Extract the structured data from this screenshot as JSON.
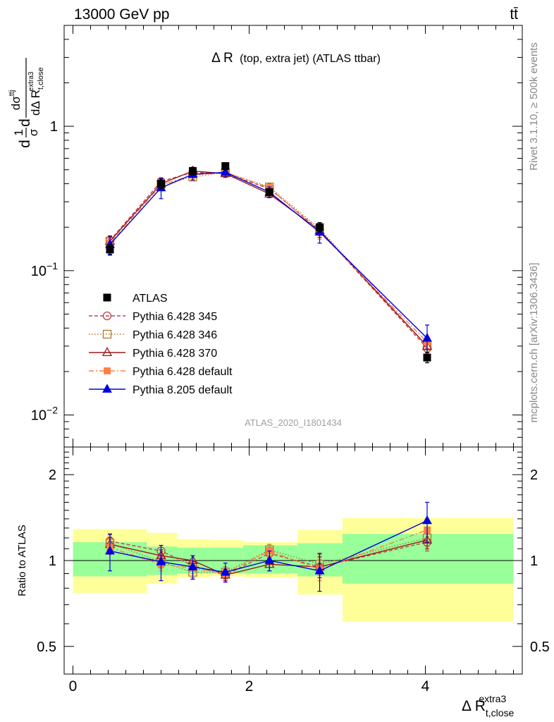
{
  "header": {
    "energy_label": "13000 GeV pp",
    "process_label": "tt̄",
    "rivet_label": "Rivet 3.1.10, ≥ 500k events",
    "mcplots_label": "mcplots.cern.ch [arXiv:1306.3436]"
  },
  "colors": {
    "ATLAS": "#000000",
    "Pythia 6.428 345": "#c04050",
    "Pythia 6.428 346": "#b07830",
    "Pythia 6.428 370": "#a01818",
    "Pythia 6.428 default": "#ff8040",
    "Pythia 8.205 default": "#0000e0",
    "band_inner": "#99ff99",
    "band_outer": "#ffff99"
  },
  "chart_data": [
    {
      "type": "line",
      "panel": "main",
      "title_main": "Δ R",
      "title_detail": "(top, extra jet) (ATLAS ttbar)",
      "ylabel": "dσ / dΔ R_t,close^extra3 (normalized, 1/σ)",
      "ylabel_parts": {
        "frac_top": "1",
        "frac_bottom": "σ",
        "d_prefix": "d",
        "d_sigma_top": "dσ",
        "d_sigma_sup": "ttj",
        "d_bottom": "dΔ R",
        "d_bottom_sub": "t,close",
        "d_bottom_sup": "extra3"
      },
      "yscale": "log",
      "ylim": [
        0.006,
        5
      ],
      "xlim": [
        -0.1,
        5.1
      ],
      "yticks_major": [
        {
          "value": 0.01,
          "base": "10",
          "exp": "−2"
        },
        {
          "value": 0.1,
          "base": "10",
          "exp": "−1"
        },
        {
          "value": 1,
          "base": "1",
          "exp": ""
        }
      ],
      "watermark": "ATLAS_2020_I1801434",
      "legend_position": "lower-left",
      "data": {
        "name": "ATLAS",
        "x": [
          0.42,
          1.0,
          1.36,
          1.73,
          2.23,
          2.8,
          4.02
        ],
        "y": [
          0.14,
          0.4,
          0.49,
          0.53,
          0.35,
          0.2,
          0.025
        ],
        "yerr": [
          0.012,
          0.03,
          0.03,
          0.03,
          0.02,
          0.015,
          0.002
        ]
      },
      "series": [
        {
          "name": "Pythia 6.428 345",
          "marker": "circle-open",
          "dash": "5,3",
          "y": [
            0.162,
            0.415,
            0.48,
            0.47,
            0.37,
            0.19,
            0.029
          ],
          "yerr": [
            0.012,
            0.02,
            0.025,
            0.025,
            0.02,
            0.02,
            0.003
          ]
        },
        {
          "name": "Pythia 6.428 346",
          "marker": "square-open",
          "dash": "1.5,2.5",
          "y": [
            0.16,
            0.395,
            0.445,
            0.48,
            0.38,
            0.195,
            0.03
          ],
          "yerr": [
            0.012,
            0.02,
            0.025,
            0.025,
            0.02,
            0.02,
            0.003
          ]
        },
        {
          "name": "Pythia 6.428 370",
          "marker": "triangle-open",
          "dash": "",
          "y": [
            0.16,
            0.4,
            0.49,
            0.47,
            0.34,
            0.19,
            0.03
          ],
          "yerr": [
            0.012,
            0.02,
            0.025,
            0.025,
            0.02,
            0.02,
            0.003
          ]
        },
        {
          "name": "Pythia 6.428 default",
          "marker": "square-filled",
          "dash": "7,3,2,3",
          "y": [
            0.155,
            0.39,
            0.46,
            0.48,
            0.375,
            0.185,
            0.032
          ],
          "yerr": [
            0.012,
            0.02,
            0.025,
            0.025,
            0.02,
            0.02,
            0.003
          ]
        },
        {
          "name": "Pythia 8.205 default",
          "marker": "triangle-filled",
          "dash": "",
          "y": [
            0.152,
            0.375,
            0.465,
            0.48,
            0.35,
            0.185,
            0.034
          ],
          "yerr": [
            0.022,
            0.06,
            0.04,
            0.035,
            0.03,
            0.03,
            0.008
          ]
        }
      ]
    },
    {
      "type": "line",
      "panel": "ratio",
      "ylabel": "Ratio to ATLAS",
      "yscale": "log",
      "ylim": [
        0.4,
        2.5
      ],
      "xlim": [
        -0.1,
        5.1
      ],
      "yticks_major": [
        {
          "value": 0.5,
          "label": "0.5"
        },
        {
          "value": 1,
          "label": "1"
        },
        {
          "value": 2,
          "label": "2"
        }
      ],
      "xticks_major": [
        {
          "value": 0,
          "label": "0"
        },
        {
          "value": 2,
          "label": "2"
        },
        {
          "value": 4,
          "label": "4"
        }
      ],
      "xlabel_parts": {
        "main": "Δ R",
        "sub": "t,close",
        "sup": "extra3"
      },
      "bands": {
        "edges": [
          0,
          0.84,
          1.18,
          1.55,
          1.93,
          2.55,
          3.06,
          5.0
        ],
        "inner_low": [
          0.88,
          0.89,
          0.9,
          0.9,
          0.9,
          0.88,
          0.83
        ],
        "inner_high": [
          1.16,
          1.12,
          1.11,
          1.11,
          1.13,
          1.15,
          1.24
        ],
        "outer_low": [
          0.77,
          0.83,
          0.87,
          0.88,
          0.87,
          0.76,
          0.61
        ],
        "outer_high": [
          1.29,
          1.25,
          1.19,
          1.18,
          1.16,
          1.28,
          1.41
        ]
      },
      "x": [
        0.42,
        1.0,
        1.36,
        1.73,
        2.23,
        2.8,
        4.02
      ],
      "series": [
        {
          "name": "Pythia 6.428 345",
          "marker": "circle-open",
          "dash": "5,3",
          "y": [
            1.17,
            1.08,
            0.96,
            0.89,
            1.06,
            0.95,
            1.16
          ],
          "yerr": [
            0.06,
            0.05,
            0.04,
            0.04,
            0.05,
            0.08,
            0.08
          ]
        },
        {
          "name": "Pythia 6.428 346",
          "marker": "square-open",
          "dash": "1.5,2.5",
          "y": [
            1.15,
            0.99,
            0.91,
            0.91,
            1.09,
            0.97,
            1.2
          ],
          "yerr": [
            0.06,
            0.05,
            0.04,
            0.04,
            0.05,
            0.08,
            0.08
          ]
        },
        {
          "name": "Pythia 6.428 370",
          "marker": "triangle-open",
          "dash": "",
          "y": [
            1.14,
            1.04,
            1.0,
            0.89,
            0.97,
            0.95,
            1.18
          ],
          "yerr": [
            0.06,
            0.05,
            0.04,
            0.04,
            0.05,
            0.08,
            0.08
          ]
        },
        {
          "name": "Pythia 6.428 default",
          "marker": "square-filled",
          "dash": "7,3,2,3",
          "y": [
            1.11,
            0.97,
            0.94,
            0.9,
            1.08,
            0.93,
            1.28
          ],
          "yerr": [
            0.06,
            0.05,
            0.04,
            0.04,
            0.05,
            0.08,
            0.08
          ]
        },
        {
          "name": "Pythia 8.205 default",
          "marker": "triangle-filled",
          "dash": "",
          "y": [
            1.08,
            0.99,
            0.95,
            0.91,
            1.0,
            0.92,
            1.38
          ],
          "yerr": [
            0.16,
            0.14,
            0.09,
            0.07,
            0.08,
            0.14,
            0.22
          ]
        }
      ]
    }
  ]
}
